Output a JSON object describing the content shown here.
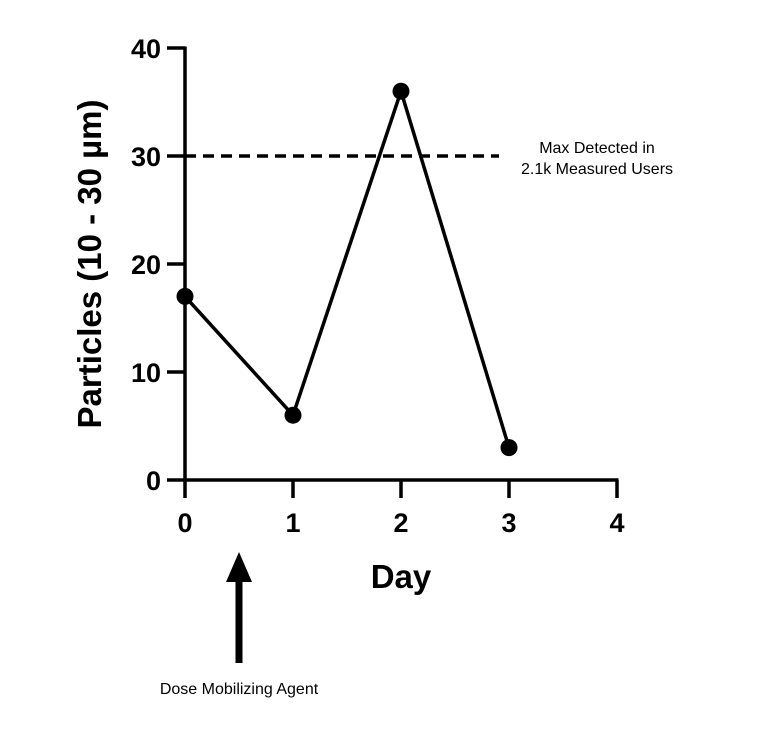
{
  "chart_data": {
    "type": "line",
    "title": "",
    "xlabel": "Day",
    "ylabel": "Particles (10 - 30 µm)",
    "xlim": [
      0,
      4
    ],
    "ylim": [
      0,
      40
    ],
    "x_ticks": [
      "0",
      "1",
      "2",
      "3",
      "4"
    ],
    "y_ticks": [
      "0",
      "10",
      "20",
      "30",
      "40"
    ],
    "grid": false,
    "series": [
      {
        "x": [
          0,
          1,
          2,
          3
        ],
        "y": [
          17,
          6,
          36,
          3
        ],
        "color": "#000000",
        "marker": "circle"
      }
    ],
    "reference_line": {
      "y": 30,
      "x_range": [
        0,
        3
      ],
      "style": "dashed",
      "label_lines": [
        "Max  Detected in",
        "2.1k Measured Users"
      ]
    },
    "annotation": {
      "text": "Dose Mobilizing Agent",
      "at_x": 0.5,
      "arrow": "up"
    }
  }
}
